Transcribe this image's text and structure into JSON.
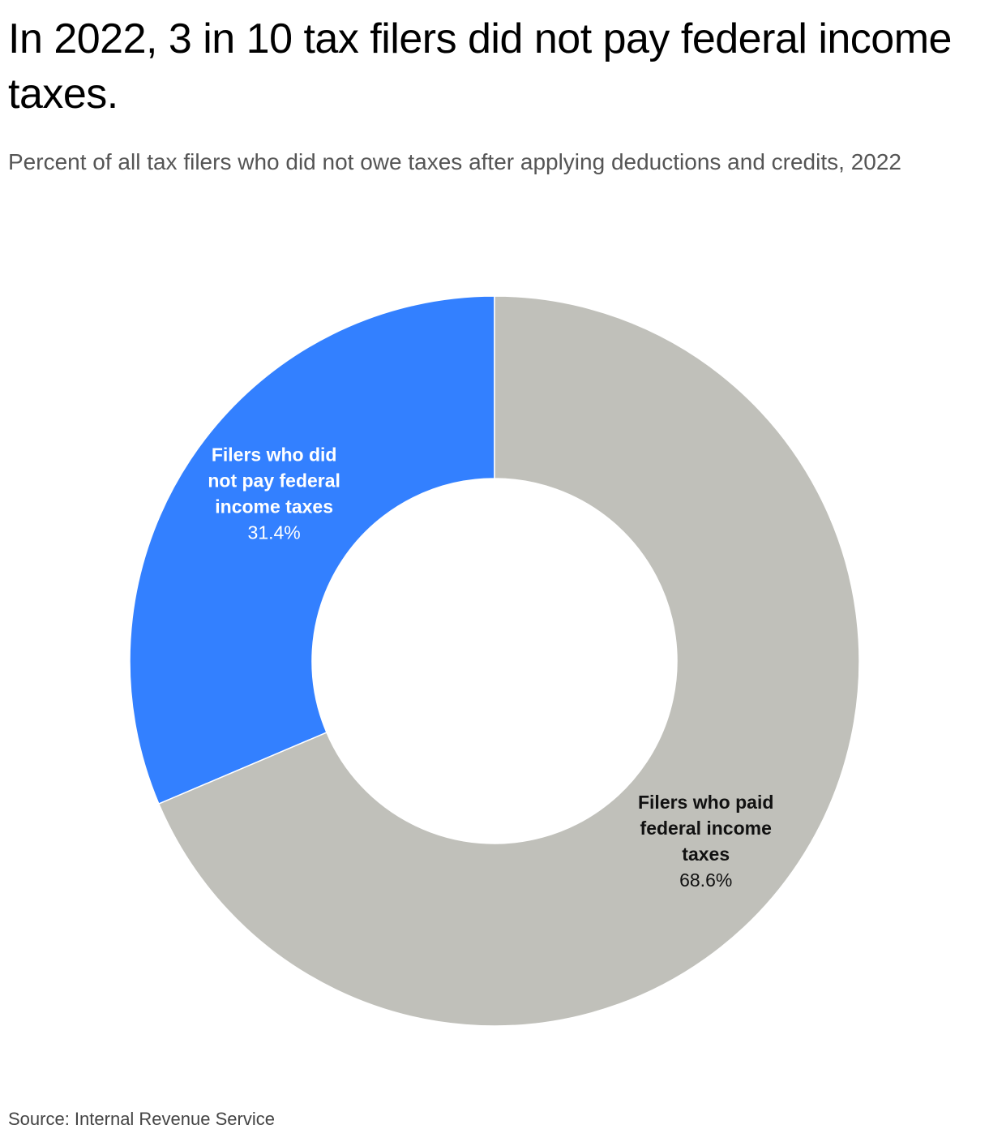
{
  "title": "In 2022, 3 in 10 tax filers did not pay federal income taxes.",
  "subtitle": "Percent of all tax filers who did not owe taxes after applying deductions and credits, 2022",
  "source": "Source: Internal Revenue Service",
  "chart_data": {
    "type": "pie",
    "donut": true,
    "unit": "%",
    "slices": [
      {
        "label_lines": [
          "Filers who did",
          "not pay federal",
          "income taxes"
        ],
        "value": 31.4,
        "value_label": "31.4%",
        "color": "#3380FF",
        "text_color": "#FFFFFF"
      },
      {
        "label_lines": [
          "Filers who paid",
          "federal income",
          "taxes"
        ],
        "value": 68.6,
        "value_label": "68.6%",
        "color": "#C0C0BA",
        "text_color": "#111111"
      }
    ],
    "legend": "none"
  }
}
